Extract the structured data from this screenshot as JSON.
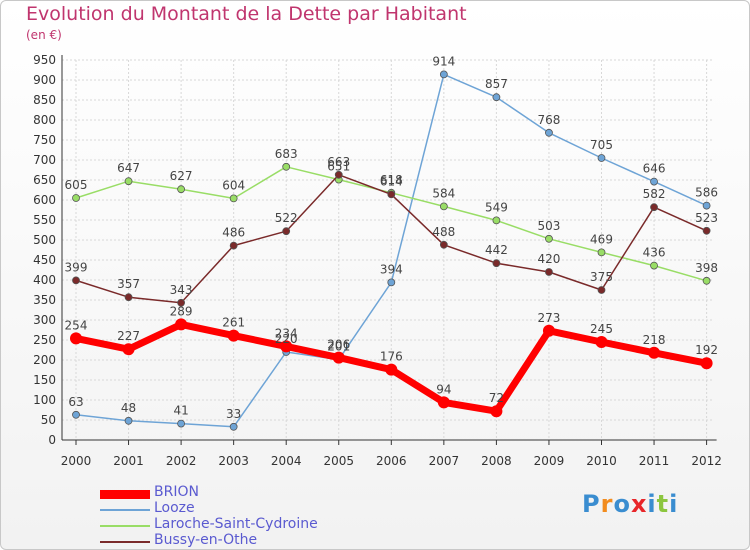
{
  "title": "Evolution du Montant de la Dette par Habitant",
  "unit_label": "(en €)",
  "logo": {
    "letters": [
      "P",
      "r",
      "o",
      "x",
      "i",
      "t",
      "i"
    ],
    "colors": [
      "#3a8dd0",
      "#f28c1e",
      "#3a8dd0",
      "#e8262a",
      "#3a8dd0",
      "#8cc63f",
      "#3a8dd0"
    ]
  },
  "chart_data": {
    "type": "line",
    "title": "Evolution du Montant de la Dette par Habitant",
    "xlabel": "",
    "ylabel": "(en €)",
    "ylim": [
      0,
      950
    ],
    "grid": true,
    "legend_position": "bottom-left",
    "yticks": [
      0,
      50,
      100,
      150,
      200,
      250,
      300,
      350,
      400,
      450,
      500,
      550,
      600,
      650,
      700,
      750,
      800,
      850,
      900,
      950
    ],
    "categories": [
      "2000",
      "2001",
      "2002",
      "2003",
      "2004",
      "2005",
      "2006",
      "2007",
      "2008",
      "2009",
      "2010",
      "2011",
      "2012"
    ],
    "series": [
      {
        "name": "BRION",
        "color": "#ff0000",
        "values": [
          254,
          227,
          289,
          261,
          234,
          206,
          176,
          94,
          72,
          273,
          245,
          218,
          192
        ]
      },
      {
        "name": "Looze",
        "color": "#6ea4d6",
        "values": [
          63,
          48,
          41,
          33,
          220,
          201,
          394,
          914,
          857,
          768,
          705,
          646,
          586
        ]
      },
      {
        "name": "Laroche-Saint-Cydroine",
        "color": "#99dd66",
        "values": [
          605,
          647,
          627,
          604,
          683,
          651,
          618,
          584,
          549,
          503,
          469,
          436,
          398
        ]
      },
      {
        "name": "Bussy-en-Othe",
        "color": "#7a2a2a",
        "values": [
          399,
          357,
          343,
          486,
          522,
          663,
          614,
          488,
          442,
          420,
          375,
          582,
          523
        ]
      }
    ]
  }
}
